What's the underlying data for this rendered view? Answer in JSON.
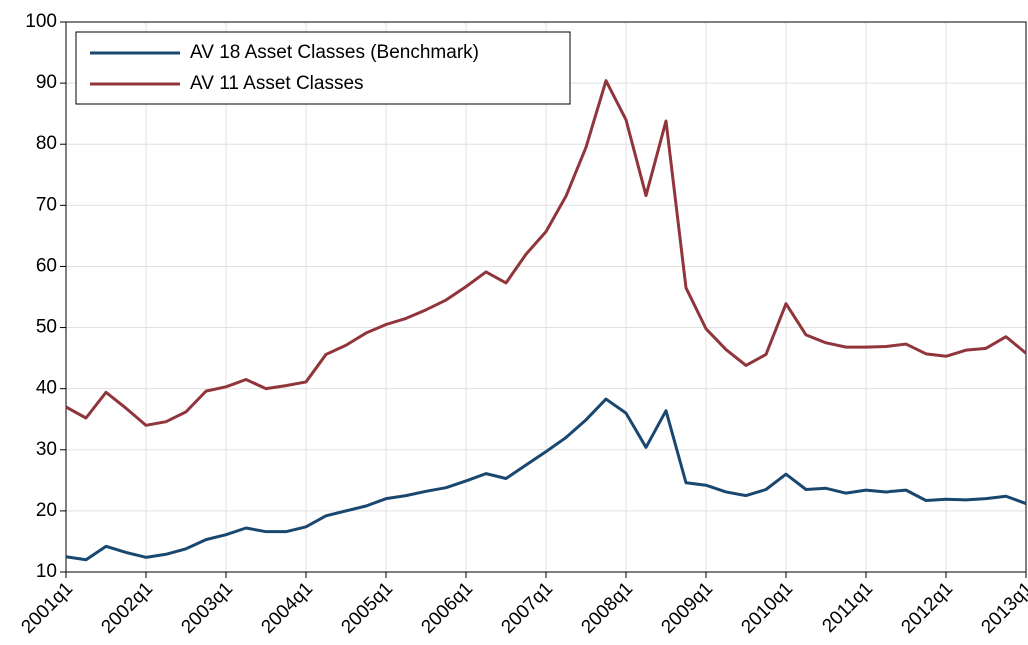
{
  "chart_data": {
    "type": "line",
    "categories": [
      "2001q1",
      null,
      null,
      null,
      "2002q1",
      null,
      null,
      null,
      "2003q1",
      null,
      null,
      null,
      "2004q1",
      null,
      null,
      null,
      "2005q1",
      null,
      null,
      null,
      "2006q1",
      null,
      null,
      null,
      "2007q1",
      null,
      null,
      null,
      "2008q1",
      null,
      null,
      null,
      "2009q1",
      null,
      null,
      null,
      "2010q1",
      null,
      null,
      null,
      "2011q1",
      null,
      null,
      null,
      "2012q1",
      null,
      null,
      null,
      "2013q1"
    ],
    "series": [
      {
        "name": "AV 18 Asset Classes (Benchmark)",
        "color": "#1a476f",
        "values": [
          12.5,
          12,
          14.2,
          13.2,
          12.4,
          12.9,
          13.8,
          15.3,
          16.1,
          17.2,
          16.6,
          16.6,
          17.4,
          19.2,
          20,
          20.8,
          22,
          22.5,
          23.2,
          23.8,
          24.9,
          26.1,
          25.3,
          27.5,
          29.7,
          32,
          34.9,
          38.3,
          36,
          30.4,
          36.4,
          24.6,
          24.2,
          23.1,
          22.5,
          23.5,
          26,
          23.5,
          23.7,
          22.9,
          23.4,
          23.1,
          23.4,
          21.7,
          21.9,
          21.8,
          22,
          22.4,
          21.2
        ]
      },
      {
        "name": "AV 11 Asset Classes",
        "color": "#90353b",
        "values": [
          37,
          35.2,
          39.4,
          36.8,
          34,
          34.6,
          36.2,
          39.6,
          40.3,
          41.5,
          40,
          40.5,
          41.1,
          45.6,
          47.1,
          49.1,
          50.5,
          51.5,
          52.9,
          54.5,
          56.7,
          59.1,
          57.3,
          62,
          65.7,
          71.5,
          79.5,
          90.4,
          84,
          71.6,
          83.8,
          56.5,
          49.8,
          46.4,
          43.8,
          45.6,
          53.9,
          48.8,
          47.5,
          46.8,
          46.8,
          46.9,
          47.3,
          45.7,
          45.3,
          46.3,
          46.6,
          48.5,
          45.8
        ]
      }
    ],
    "ylim": [
      10,
      100
    ],
    "yticks": [
      10,
      20,
      30,
      40,
      50,
      60,
      70,
      80,
      90,
      100
    ],
    "grid": true,
    "legend": "top-left"
  }
}
